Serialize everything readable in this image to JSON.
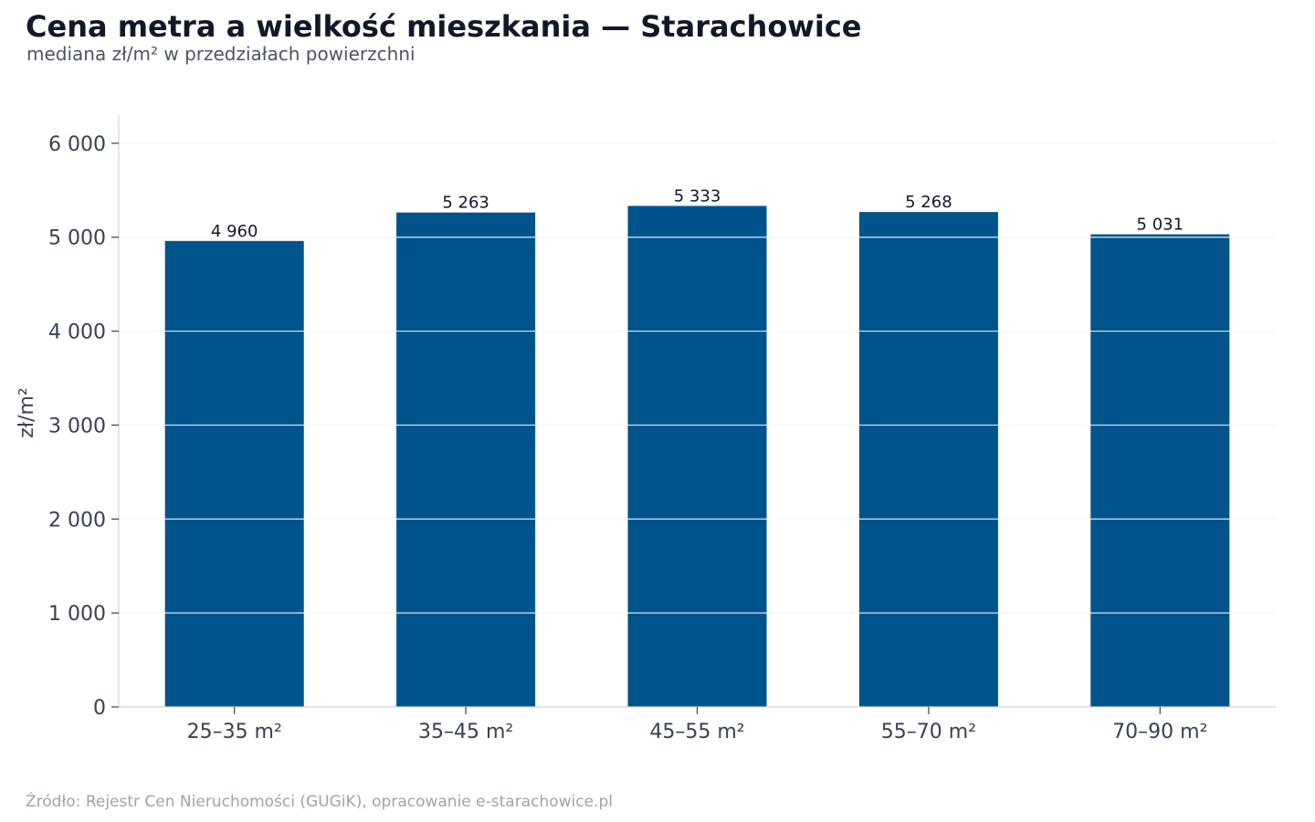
{
  "chart_data": {
    "type": "bar",
    "title": "Cena metra a wielkość mieszkania — Starachowice",
    "subtitle": "mediana zł/m² w przedziałach powierzchni",
    "xlabel": "",
    "ylabel": "zł/m²",
    "categories": [
      "25–35 m²",
      "35–45 m²",
      "45–55 m²",
      "55–70 m²",
      "70–90 m²"
    ],
    "values": [
      4960,
      5263,
      5333,
      5268,
      5031
    ],
    "value_labels": [
      "4 960",
      "5 263",
      "5 333",
      "5 268",
      "5 031"
    ],
    "ylim": [
      0,
      6300
    ],
    "yticks": [
      0,
      1000,
      2000,
      3000,
      4000,
      5000,
      6000
    ],
    "ytick_labels": [
      "0",
      "1 000",
      "2 000",
      "3 000",
      "4 000",
      "5 000",
      "6 000"
    ],
    "grid": true,
    "legend": "none",
    "bar_color": "#00548c",
    "source": "Źródło: Rejestr Cen Nieruchomości (GUGiK), opracowanie e-starachowice.pl"
  }
}
